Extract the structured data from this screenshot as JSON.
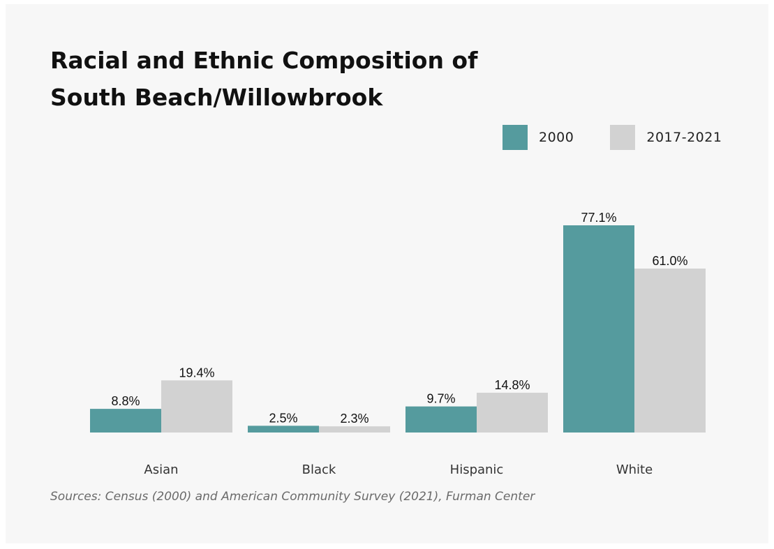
{
  "colors": {
    "series_2000": "#559b9e",
    "series_2017_2021": "#d2d2d2",
    "background": "#f7f7f7"
  },
  "sources": "Sources: Census (2000) and American Community Survey (2021), Furman Center",
  "chart_data": {
    "type": "bar",
    "title": "Racial and Ethnic Composition of South Beach/Willowbrook",
    "categories": [
      "Asian",
      "Black",
      "Hispanic",
      "White"
    ],
    "series": [
      {
        "name": "2000",
        "values": [
          8.8,
          2.5,
          9.7,
          77.1
        ],
        "labels": [
          "8.8%",
          "2.5%",
          "9.7%",
          "77.1%"
        ]
      },
      {
        "name": "2017-2021",
        "values": [
          19.4,
          2.3,
          14.8,
          61.0
        ],
        "labels": [
          "19.4%",
          "2.3%",
          "14.8%",
          "61.0%"
        ]
      }
    ],
    "xlabel": "",
    "ylabel": "",
    "ylim": [
      0,
      77.1
    ],
    "grid": false,
    "legend_position": "top-right",
    "value_axis_shown": false
  }
}
